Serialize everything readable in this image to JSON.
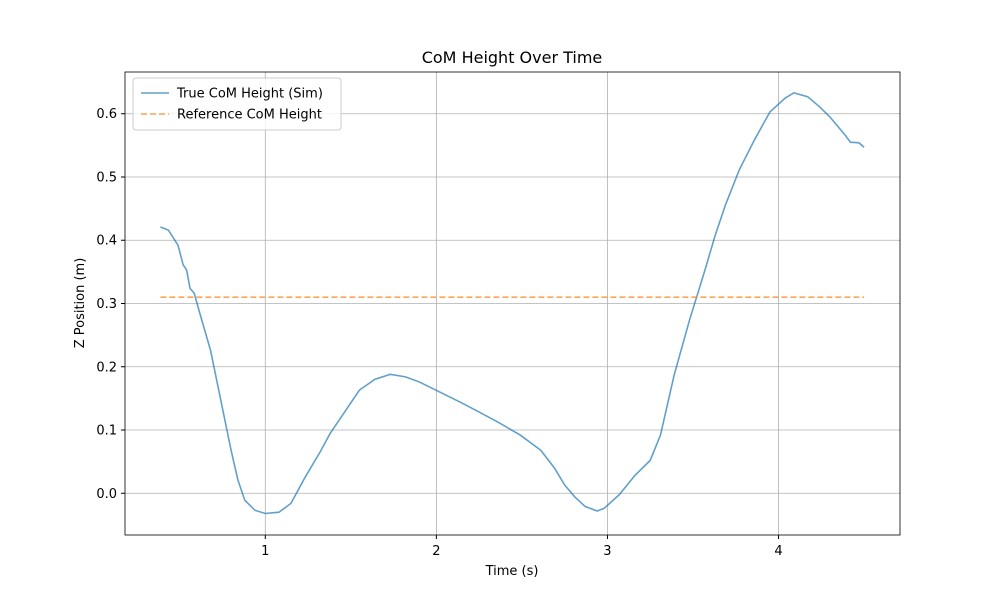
{
  "chart_data": {
    "type": "line",
    "title": "CoM Height Over Time",
    "xlabel": "Time (s)",
    "ylabel": "Z Position (m)",
    "xlim": [
      0.18,
      4.71
    ],
    "xticks": [
      1,
      2,
      3,
      4
    ],
    "ylim": [
      -0.066,
      0.666
    ],
    "yticks": [
      {
        "value": 0,
        "label": "0.0"
      },
      0.1,
      0.2,
      0.3,
      0.4,
      0.5,
      0.6
    ],
    "grid": true,
    "legend": "upper left",
    "series": [
      {
        "name": "True CoM Height (Sim)",
        "color": "#1f77b4",
        "opacity": 0.7,
        "linestyle": "solid",
        "x": [
          0.387,
          0.434,
          0.49,
          0.52,
          0.54,
          0.56,
          0.585,
          0.62,
          0.68,
          0.74,
          0.8,
          0.84,
          0.88,
          0.94,
          1.0,
          1.08,
          1.15,
          1.23,
          1.32,
          1.38,
          1.47,
          1.55,
          1.64,
          1.73,
          1.82,
          1.9,
          2.02,
          2.14,
          2.26,
          2.37,
          2.49,
          2.61,
          2.69,
          2.75,
          2.81,
          2.87,
          2.94,
          2.98,
          3.07,
          3.16,
          3.25,
          3.31,
          3.39,
          3.48,
          3.57,
          3.63,
          3.69,
          3.77,
          3.86,
          3.95,
          4.04,
          4.09,
          4.17,
          4.24,
          4.3,
          4.39,
          4.42,
          4.47,
          4.5
        ],
        "values": [
          0.421,
          0.416,
          0.392,
          0.361,
          0.353,
          0.324,
          0.316,
          0.282,
          0.226,
          0.147,
          0.068,
          0.021,
          -0.011,
          -0.027,
          -0.032,
          -0.03,
          -0.016,
          0.024,
          0.065,
          0.095,
          0.131,
          0.163,
          0.18,
          0.188,
          0.184,
          0.176,
          0.16,
          0.144,
          0.127,
          0.111,
          0.092,
          0.068,
          0.04,
          0.013,
          -0.006,
          -0.021,
          -0.028,
          -0.024,
          -0.002,
          0.028,
          0.052,
          0.092,
          0.187,
          0.274,
          0.353,
          0.408,
          0.456,
          0.511,
          0.559,
          0.603,
          0.625,
          0.633,
          0.627,
          0.611,
          0.595,
          0.566,
          0.555,
          0.554,
          0.547
        ]
      },
      {
        "name": "Reference CoM Height",
        "color": "#ff7f0e",
        "opacity": 0.7,
        "linestyle": "dashed",
        "x": [
          0.387,
          4.5
        ],
        "values": [
          0.31,
          0.31
        ]
      }
    ]
  }
}
